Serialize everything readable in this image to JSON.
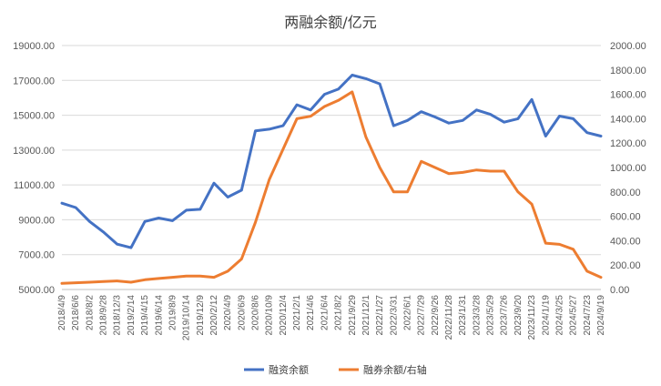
{
  "chart_data": {
    "type": "line",
    "title": "两融余额/亿元",
    "grid": true,
    "legend_position": "bottom",
    "y_left": {
      "ylim": [
        5000,
        19000
      ],
      "ticks": [
        5000,
        7000,
        9000,
        11000,
        13000,
        15000,
        17000,
        19000
      ],
      "tick_labels": [
        "5000.00",
        "7000.00",
        "9000.00",
        "11000.00",
        "13000.00",
        "15000.00",
        "17000.00",
        "19000.00"
      ]
    },
    "y_right": {
      "ylim": [
        0,
        2000
      ],
      "ticks": [
        0,
        200,
        400,
        600,
        800,
        1000,
        1200,
        1400,
        1600,
        1800,
        2000
      ],
      "tick_labels": [
        "0.00",
        "200.00",
        "400.00",
        "600.00",
        "800.00",
        "1000.00",
        "1200.00",
        "1400.00",
        "1600.00",
        "1800.00",
        "2000.00"
      ]
    },
    "x_tick_labels": [
      "2018/4/9",
      "2018/6/6",
      "2018/8/2",
      "2018/9/28",
      "2018/12/3",
      "2019/2/14",
      "2019/4/15",
      "2019/6/14",
      "2019/8/9",
      "2019/10/14",
      "2019/12/9",
      "2020/2/12",
      "2020/4/9",
      "2020/6/9",
      "2020/8/6",
      "2020/10/9",
      "2020/12/4",
      "2021/2/1",
      "2021/4/6",
      "2021/6/4",
      "2021/8/2",
      "2021/9/29",
      "2021/12/1",
      "2022/1/27",
      "2022/3/31",
      "2022/6/1",
      "2022/7/29",
      "2022/9/26",
      "2022/11/28",
      "2023/1/31",
      "2023/3/28",
      "2023/5/29",
      "2023/7/26",
      "2023/9/20",
      "2023/11/23",
      "2024/1/19",
      "2024/3/25",
      "2024/5/27",
      "2024/7/23",
      "2024/9/19"
    ],
    "x": [
      "2018/4/9",
      "2018/6/6",
      "2018/8/2",
      "2018/9/28",
      "2018/12/3",
      "2019/2/14",
      "2019/4/15",
      "2019/6/14",
      "2019/8/9",
      "2019/10/14",
      "2019/12/9",
      "2020/2/12",
      "2020/4/9",
      "2020/6/9",
      "2020/8/6",
      "2020/10/9",
      "2020/12/4",
      "2021/2/1",
      "2021/4/6",
      "2021/6/4",
      "2021/8/2",
      "2021/9/29",
      "2021/12/1",
      "2022/1/27",
      "2022/3/31",
      "2022/6/1",
      "2022/7/29",
      "2022/9/26",
      "2022/11/28",
      "2023/1/31",
      "2023/3/28",
      "2023/5/29",
      "2023/7/26",
      "2023/9/20",
      "2023/11/23",
      "2024/1/19",
      "2024/3/25",
      "2024/5/27",
      "2024/7/23",
      "2024/9/19"
    ],
    "series": [
      {
        "name": "融资余额",
        "axis": "left",
        "color": "#4472C4",
        "values": [
          9950,
          9700,
          8900,
          8300,
          7600,
          7400,
          8900,
          9100,
          8950,
          9550,
          9600,
          11100,
          10300,
          10700,
          14100,
          14200,
          14400,
          15600,
          15300,
          16200,
          16500,
          17300,
          17100,
          16800,
          14400,
          14700,
          15200,
          14900,
          14550,
          14700,
          15300,
          15050,
          14600,
          14800,
          15900,
          13800,
          14950,
          14800,
          14000,
          13800
        ]
      },
      {
        "name": "融券余额/右轴",
        "axis": "right",
        "color": "#ED7D31",
        "values": [
          50,
          55,
          60,
          65,
          70,
          60,
          80,
          90,
          100,
          110,
          110,
          100,
          150,
          250,
          550,
          900,
          1150,
          1400,
          1420,
          1500,
          1550,
          1620,
          1250,
          1000,
          800,
          800,
          1050,
          1000,
          950,
          960,
          980,
          970,
          970,
          800,
          700,
          380,
          370,
          330,
          150,
          100
        ]
      }
    ]
  }
}
